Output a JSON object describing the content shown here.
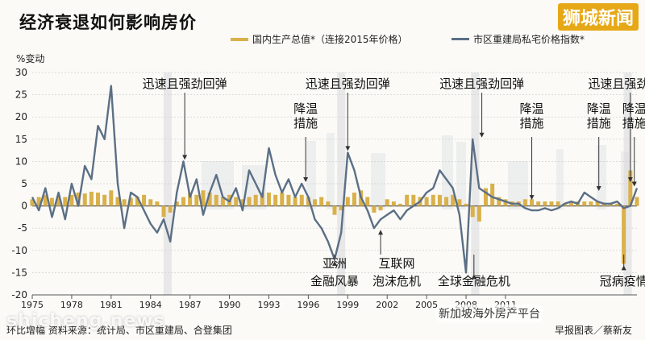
{
  "header": {
    "title": "经济衰退如何影响房价",
    "brand": "狮城新闻"
  },
  "legend": {
    "gdp": "国内生产总值*（连接2015年价格）",
    "ppi": "市区重建局私宅价格指数*"
  },
  "footer": {
    "left": "环比增幅 资料来源：统计局、市区重建局、合登集团",
    "right": "早报图表／蔡新友"
  },
  "watermark": {
    "site": "shicheng.news",
    "account": "新加坡海外房产平台"
  },
  "chart_data": {
    "type": "bar+line",
    "ylabel": "%变动",
    "ylim": [
      -20,
      30
    ],
    "yticks": [
      30,
      25,
      20,
      15,
      10,
      5,
      0,
      -5,
      -10,
      -15,
      -20
    ],
    "xlim": [
      1975,
      2021
    ],
    "xticks": [
      "1975",
      "1978",
      "1981",
      "1984",
      "1987",
      "1990",
      "1993",
      "1996",
      "1999",
      "2002",
      "2005",
      "2008",
      "2011"
    ],
    "series": [
      {
        "name": "国内生产总值*（连接2015年价格）",
        "kind": "bar",
        "color": "#d9b04a",
        "x": [
          1975.0,
          1975.5,
          1976.0,
          1976.5,
          1977.0,
          1977.5,
          1978.0,
          1978.5,
          1979.0,
          1979.5,
          1980.0,
          1980.5,
          1981.0,
          1981.5,
          1982.0,
          1982.5,
          1983.0,
          1983.5,
          1984.0,
          1984.5,
          1985.0,
          1985.5,
          1986.0,
          1986.5,
          1987.0,
          1987.5,
          1988.0,
          1988.5,
          1989.0,
          1989.5,
          1990.0,
          1990.5,
          1991.0,
          1991.5,
          1992.0,
          1992.5,
          1993.0,
          1993.5,
          1994.0,
          1994.5,
          1995.0,
          1995.5,
          1996.0,
          1996.5,
          1997.0,
          1997.5,
          1998.0,
          1998.5,
          1999.0,
          1999.5,
          2000.0,
          2000.5,
          2001.0,
          2001.5,
          2002.0,
          2002.5,
          2003.0,
          2003.5,
          2004.0,
          2004.5,
          2005.0,
          2005.5,
          2006.0,
          2006.5,
          2007.0,
          2007.5,
          2008.0,
          2008.5,
          2009.0,
          2009.5,
          2010.0,
          2010.5,
          2011.0,
          2011.5,
          2012.0,
          2012.5,
          2013.0,
          2013.5,
          2014.0,
          2014.5,
          2015.0,
          2015.5,
          2016.0,
          2016.5,
          2017.0,
          2017.5,
          2018.0,
          2018.5,
          2019.0,
          2019.5,
          2020.0,
          2020.5,
          2021.0
        ],
        "values": [
          1.5,
          2.0,
          2.5,
          1.8,
          2.2,
          2.0,
          2.5,
          3.0,
          2.8,
          3.2,
          3.0,
          2.5,
          3.5,
          2.0,
          1.5,
          1.8,
          2.0,
          2.5,
          1.5,
          1.0,
          -2.5,
          -1.5,
          1.0,
          2.0,
          3.0,
          2.5,
          3.5,
          3.0,
          2.5,
          2.0,
          2.5,
          2.0,
          1.5,
          2.0,
          2.5,
          3.0,
          3.0,
          2.5,
          3.0,
          2.5,
          2.0,
          2.5,
          2.0,
          1.5,
          2.0,
          1.0,
          -2.0,
          -1.0,
          2.0,
          3.0,
          3.5,
          2.0,
          -1.5,
          -1.0,
          1.5,
          1.0,
          0.5,
          2.5,
          2.5,
          2.0,
          2.0,
          2.5,
          2.5,
          2.0,
          2.5,
          1.5,
          0.5,
          -2.5,
          -3.5,
          4.0,
          5.0,
          2.0,
          1.5,
          1.0,
          1.0,
          1.5,
          1.5,
          1.0,
          1.0,
          1.0,
          1.0,
          0.5,
          1.0,
          1.0,
          1.0,
          1.0,
          1.0,
          0.5,
          0.5,
          0.5,
          -13.0,
          8.0,
          2.0
        ]
      },
      {
        "name": "市区重建局私宅价格指数*",
        "kind": "line",
        "color": "#5b6f86",
        "x": [
          1975.0,
          1975.5,
          1976.0,
          1976.5,
          1977.0,
          1977.5,
          1978.0,
          1978.5,
          1979.0,
          1979.5,
          1980.0,
          1980.5,
          1981.0,
          1981.5,
          1982.0,
          1982.5,
          1983.0,
          1983.5,
          1984.0,
          1984.5,
          1985.0,
          1985.5,
          1986.0,
          1986.5,
          1987.0,
          1987.5,
          1988.0,
          1988.5,
          1989.0,
          1989.5,
          1990.0,
          1990.5,
          1991.0,
          1991.5,
          1992.0,
          1992.5,
          1993.0,
          1993.5,
          1994.0,
          1994.5,
          1995.0,
          1995.5,
          1996.0,
          1996.5,
          1997.0,
          1997.5,
          1998.0,
          1998.5,
          1999.0,
          1999.5,
          2000.0,
          2000.5,
          2001.0,
          2001.5,
          2002.0,
          2002.5,
          2003.0,
          2003.5,
          2004.0,
          2004.5,
          2005.0,
          2005.5,
          2006.0,
          2006.5,
          2007.0,
          2007.5,
          2008.0,
          2008.5,
          2009.0,
          2009.5,
          2010.0,
          2010.5,
          2011.0,
          2011.5,
          2012.0,
          2012.5,
          2013.0,
          2013.5,
          2014.0,
          2014.5,
          2015.0,
          2015.5,
          2016.0,
          2016.5,
          2017.0,
          2017.5,
          2018.0,
          2018.5,
          2019.0,
          2019.5,
          2020.0,
          2020.5,
          2021.0
        ],
        "values": [
          2.0,
          -1.0,
          4.0,
          -2.5,
          3.0,
          -3.0,
          5.0,
          0.0,
          9.0,
          6.0,
          18.0,
          15.0,
          27.0,
          5.0,
          -5.0,
          3.0,
          2.0,
          -1.0,
          -4.0,
          -6.0,
          -3.0,
          -8.0,
          3.0,
          10.0,
          2.0,
          6.0,
          -2.0,
          3.0,
          7.0,
          2.0,
          1.0,
          4.0,
          -1.0,
          8.0,
          5.0,
          2.0,
          13.0,
          7.0,
          3.0,
          6.0,
          2.0,
          5.0,
          2.0,
          -3.0,
          -5.0,
          -8.0,
          -12.0,
          -6.0,
          12.0,
          8.0,
          2.0,
          -1.0,
          -5.0,
          -3.0,
          -2.0,
          -1.0,
          -3.0,
          -1.0,
          0.0,
          1.0,
          3.0,
          4.0,
          8.0,
          6.0,
          4.0,
          -2.0,
          -15.0,
          15.0,
          4.0,
          3.0,
          2.0,
          1.5,
          1.0,
          0.5,
          0.5,
          -0.5,
          -1.0,
          -1.0,
          -0.5,
          -1.0,
          -0.5,
          0.5,
          1.0,
          0.5,
          3.0,
          2.0,
          1.0,
          0.5,
          0.5,
          1.0,
          -0.5,
          0.0,
          4.0
        ]
      }
    ],
    "annotations": [
      {
        "text": "迅速且强劲回弹",
        "x": 1986.6,
        "y": 10
      },
      {
        "text": "迅速且强劲回弹",
        "x": 1999.0,
        "y": 12
      },
      {
        "text": "迅速且强劲回弹",
        "x": 2009.2,
        "y": 15
      },
      {
        "text": "迅速且强劲回弹",
        "x": 2020.5,
        "y": 5
      },
      {
        "text": "降温措施",
        "x": 1995.8,
        "y": 5
      },
      {
        "text": "降温措施",
        "x": 2013.0,
        "y": 1
      },
      {
        "text": "降温措施",
        "x": 2018.1,
        "y": 3
      },
      {
        "text": "降温措施",
        "x": 2020.8,
        "y": 4
      },
      {
        "text": "亚洲金融风暴",
        "x": 1998.0,
        "y": -12
      },
      {
        "text": "互联网泡沫危机",
        "x": 2001.5,
        "y": -5
      },
      {
        "text": "全球金融危机",
        "x": 2008.6,
        "y": -15
      },
      {
        "text": "冠病疫情",
        "x": 2020.0,
        "y": -13
      }
    ],
    "shaded_periods": [
      1985.3,
      1998.5,
      2008.7,
      2020.3
    ],
    "grid": true
  }
}
